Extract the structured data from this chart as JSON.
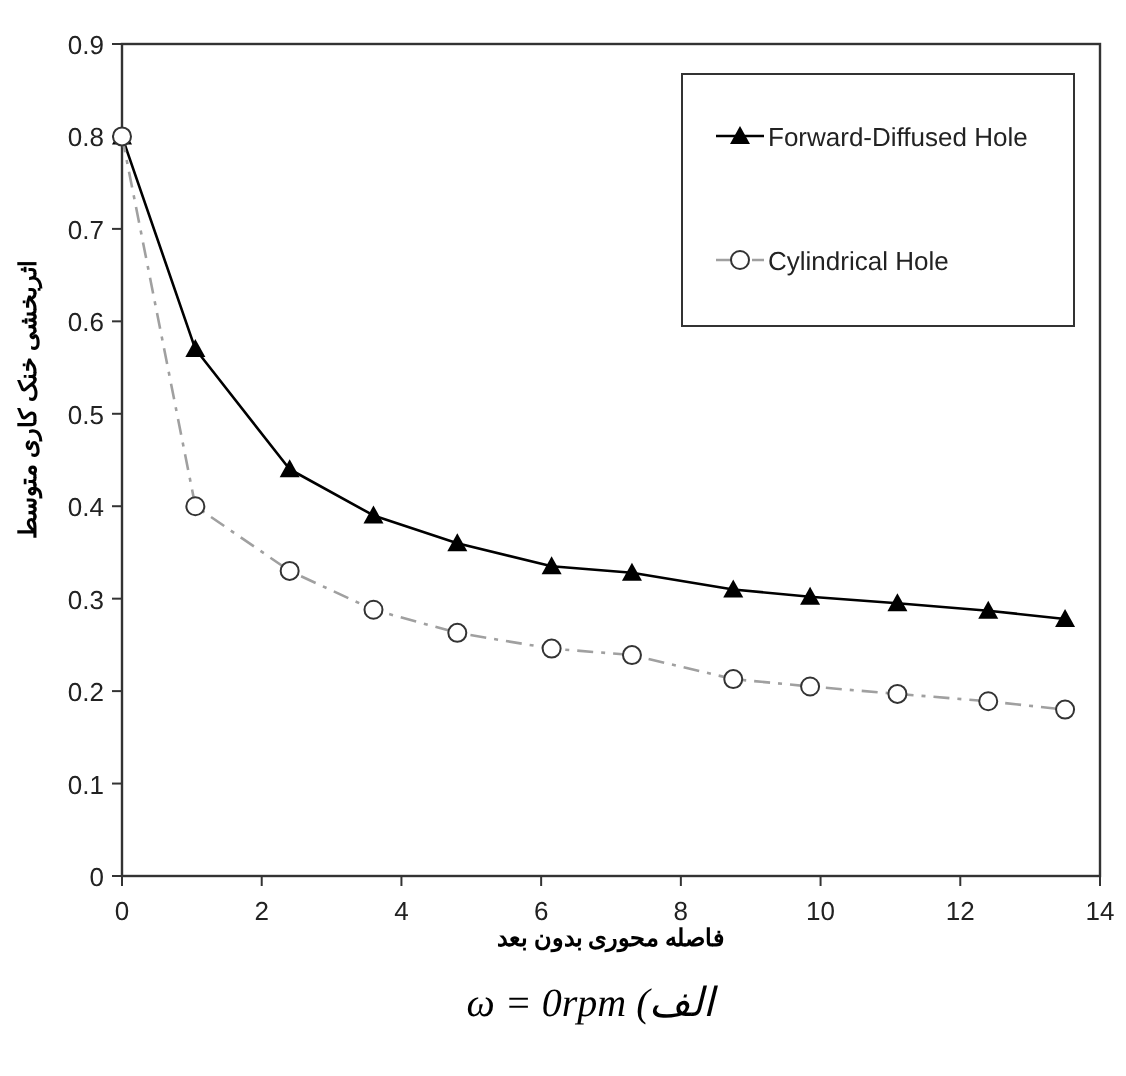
{
  "chart_data": {
    "type": "line",
    "xlabel": "فاصله محوری بدون بعد",
    "ylabel": "اثربخشی خنک کاری متوسط",
    "annotations": [
      "الف) ω = 0rpm"
    ],
    "xlim": [
      0,
      14
    ],
    "xticks": [
      0,
      2,
      4,
      6,
      8,
      10,
      12,
      14
    ],
    "ylim": [
      0,
      0.9
    ],
    "yticks": [
      0,
      0.1,
      0.2,
      0.3,
      0.4,
      0.5,
      0.6,
      0.7,
      0.8,
      0.9
    ],
    "grid": false,
    "legend": "top right",
    "series": [
      {
        "name": "Forward-Diffused Hole",
        "color": "#000000",
        "marker": "triangle",
        "line_style": "solid",
        "x": [
          0,
          1.05,
          2.4,
          3.6,
          4.8,
          6.15,
          7.3,
          8.75,
          9.85,
          11.1,
          12.4,
          13.5
        ],
        "values": [
          0.8,
          0.57,
          0.44,
          0.39,
          0.36,
          0.335,
          0.328,
          0.31,
          0.302,
          0.295,
          0.287,
          0.278
        ]
      },
      {
        "name": "Cylindrical Hole",
        "color": "#a0a0a0",
        "marker": "circle",
        "line_style": "dashed",
        "x": [
          0,
          1.05,
          2.4,
          3.6,
          4.8,
          6.15,
          7.3,
          8.75,
          9.85,
          11.1,
          12.4,
          13.5
        ],
        "values": [
          0.8,
          0.4,
          0.33,
          0.288,
          0.263,
          0.246,
          0.239,
          0.213,
          0.205,
          0.197,
          0.189,
          0.18
        ]
      }
    ]
  }
}
